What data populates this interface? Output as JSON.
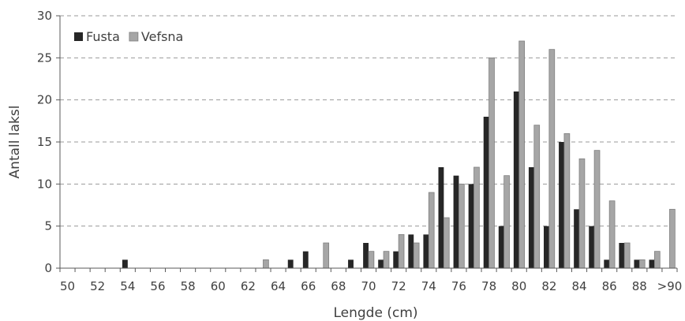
{
  "chart_data": {
    "type": "bar",
    "title": "",
    "xlabel": "Lengde (cm)",
    "ylabel": "Antall laksl",
    "ylim": [
      0,
      30
    ],
    "yticks": [
      "0",
      "5",
      "10",
      "15",
      "20",
      "25",
      "30"
    ],
    "grid": true,
    "legend_position": "top-left",
    "categories": [
      "50",
      "51",
      "52",
      "53",
      "54",
      "55",
      "56",
      "57",
      "58",
      "59",
      "60",
      "61",
      "62",
      "63",
      "64",
      "65",
      "66",
      "67",
      "68",
      "69",
      "70",
      "71",
      "72",
      "73",
      "74",
      "75",
      "76",
      "77",
      "78",
      "79",
      "80",
      "81",
      "82",
      "83",
      "84",
      "85",
      "86",
      "87",
      "88",
      "89",
      ">90"
    ],
    "category_tick_labels": [
      "50",
      "52",
      "54",
      "56",
      "58",
      "60",
      "62",
      "64",
      "66",
      "68",
      "70",
      "72",
      "74",
      "76",
      "78",
      "80",
      "82",
      "84",
      "86",
      "88",
      ">90"
    ],
    "series": [
      {
        "name": "Fusta",
        "color": "#262626",
        "values": [
          0,
          0,
          0,
          0,
          1,
          0,
          0,
          0,
          0,
          0,
          0,
          0,
          0,
          0,
          0,
          1,
          2,
          0,
          0,
          1,
          3,
          1,
          2,
          4,
          4,
          12,
          11,
          10,
          18,
          5,
          21,
          12,
          5,
          15,
          7,
          5,
          1,
          3,
          1,
          1,
          0
        ]
      },
      {
        "name": "Vefsna",
        "color": "#a6a6a6",
        "values": [
          0,
          0,
          0,
          0,
          0,
          0,
          0,
          0,
          0,
          0,
          0,
          0,
          0,
          1,
          0,
          0,
          0,
          3,
          0,
          0,
          2,
          2,
          4,
          3,
          9,
          6,
          10,
          12,
          25,
          11,
          27,
          17,
          26,
          16,
          13,
          14,
          8,
          3,
          1,
          2,
          7
        ]
      }
    ]
  }
}
